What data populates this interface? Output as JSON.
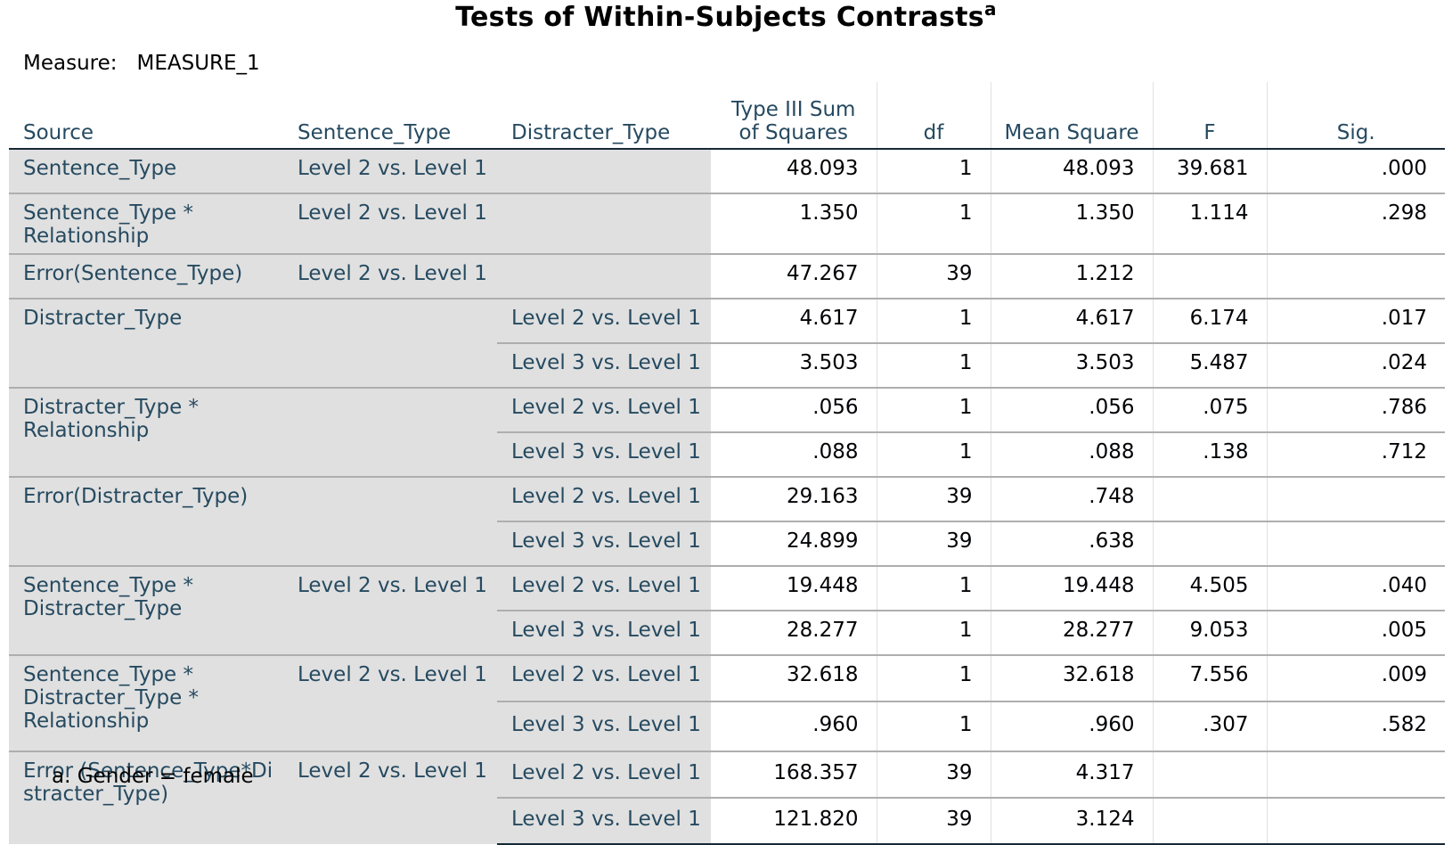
{
  "title": "Tests of Within-Subjects Contrasts",
  "title_footnote_marker": "a",
  "measure_label": "Measure:",
  "measure_value": "MEASURE_1",
  "headers": {
    "source": "Source",
    "sentence_type": "Sentence_Type",
    "distracter_type": "Distracter_Type",
    "ss_line1": "Type III Sum",
    "ss_line2": "of Squares",
    "df": "df",
    "ms": "Mean Square",
    "f": "F",
    "sig": "Sig."
  },
  "rows": [
    {
      "source": "Sentence_Type",
      "st": "Level 2 vs. Level 1",
      "dt": "",
      "ss": "48.093",
      "df": "1",
      "ms": "48.093",
      "f": "39.681",
      "sig": ".000"
    },
    {
      "source": "Sentence_Type * Relationship",
      "st": "Level 2 vs. Level 1",
      "dt": "",
      "ss": "1.350",
      "df": "1",
      "ms": "1.350",
      "f": "1.114",
      "sig": ".298"
    },
    {
      "source": "Error(Sentence_Type)",
      "st": "Level 2 vs. Level 1",
      "dt": "",
      "ss": "47.267",
      "df": "39",
      "ms": "1.212",
      "f": "",
      "sig": ""
    },
    {
      "source": "Distracter_Type",
      "st": "",
      "dt": "Level 2 vs. Level 1",
      "ss": "4.617",
      "df": "1",
      "ms": "4.617",
      "f": "6.174",
      "sig": ".017"
    },
    {
      "source": "",
      "st": "",
      "dt": "Level 3 vs. Level 1",
      "ss": "3.503",
      "df": "1",
      "ms": "3.503",
      "f": "5.487",
      "sig": ".024"
    },
    {
      "source": "Distracter_Type * Relationship",
      "st": "",
      "dt": "Level 2 vs. Level 1",
      "ss": ".056",
      "df": "1",
      "ms": ".056",
      "f": ".075",
      "sig": ".786"
    },
    {
      "source": "",
      "st": "",
      "dt": "Level 3 vs. Level 1",
      "ss": ".088",
      "df": "1",
      "ms": ".088",
      "f": ".138",
      "sig": ".712"
    },
    {
      "source": "Error(Distracter_Type)",
      "st": "",
      "dt": "Level 2 vs. Level 1",
      "ss": "29.163",
      "df": "39",
      "ms": ".748",
      "f": "",
      "sig": ""
    },
    {
      "source": "",
      "st": "",
      "dt": "Level 3 vs. Level 1",
      "ss": "24.899",
      "df": "39",
      "ms": ".638",
      "f": "",
      "sig": ""
    },
    {
      "source": "Sentence_Type * Distracter_Type",
      "st": "Level 2 vs. Level 1",
      "dt": "Level 2 vs. Level 1",
      "ss": "19.448",
      "df": "1",
      "ms": "19.448",
      "f": "4.505",
      "sig": ".040"
    },
    {
      "source": "",
      "st": "",
      "dt": "Level 3 vs. Level 1",
      "ss": "28.277",
      "df": "1",
      "ms": "28.277",
      "f": "9.053",
      "sig": ".005"
    },
    {
      "source": "Sentence_Type * Distracter_Type * Relationship",
      "st": "Level 2 vs. Level 1",
      "dt": "Level 2 vs. Level 1",
      "ss": "32.618",
      "df": "1",
      "ms": "32.618",
      "f": "7.556",
      "sig": ".009"
    },
    {
      "source": "",
      "st": "",
      "dt": "Level 3 vs. Level 1",
      "ss": ".960",
      "df": "1",
      "ms": ".960",
      "f": ".307",
      "sig": ".582"
    },
    {
      "source": "Error (Sentence_Type*Distracter_Type)",
      "st": "Level 2 vs. Level 1",
      "dt": "Level 2 vs. Level 1",
      "ss": "168.357",
      "df": "39",
      "ms": "4.317",
      "f": "",
      "sig": ""
    },
    {
      "source": "",
      "st": "",
      "dt": "Level 3 vs. Level 1",
      "ss": "121.820",
      "df": "39",
      "ms": "3.124",
      "f": "",
      "sig": ""
    }
  ],
  "footnote": "a. Gender = female"
}
